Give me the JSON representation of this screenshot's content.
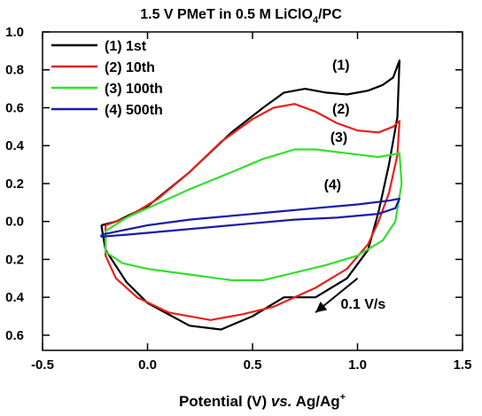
{
  "chart_data": {
    "type": "line",
    "title_main": "1.5 V PMeT in 0.5 M LiClO",
    "title_sub": "4",
    "title_tail": "/PC",
    "xlabel_main": "Potential (V) ",
    "xlabel_italic": "vs.",
    "xlabel_tail": " Ag/Ag",
    "xlabel_sup": "+",
    "ylabel": "",
    "xlim": [
      -0.5,
      1.5
    ],
    "ylim": [
      -0.68,
      1.0
    ],
    "x_ticks": [
      {
        "value": -0.5,
        "label": "-0.5"
      },
      {
        "value": 0.0,
        "label": "0.0"
      },
      {
        "value": 0.5,
        "label": "0.5"
      },
      {
        "value": 1.0,
        "label": "1.0"
      },
      {
        "value": 1.5,
        "label": "1.5"
      }
    ],
    "y_ticks": [
      {
        "value": 1.0,
        "label": "1.0"
      },
      {
        "value": 0.8,
        "label": "0.8"
      },
      {
        "value": 0.6,
        "label": "0.6"
      },
      {
        "value": 0.4,
        "label": "0.4"
      },
      {
        "value": 0.2,
        "label": "0.2"
      },
      {
        "value": 0.0,
        "label": "0.0"
      },
      {
        "value": -0.2,
        "label": "0.2"
      },
      {
        "value": -0.4,
        "label": "0.4"
      },
      {
        "value": -0.6,
        "label": "0.6"
      }
    ],
    "grid": false,
    "legend_position": "top-left",
    "series": [
      {
        "name": "(1) 1st",
        "color": "#000000",
        "annotation": "(1)",
        "points": [
          [
            -0.22,
            -0.02
          ],
          [
            -0.15,
            0.0
          ],
          [
            0.0,
            0.08
          ],
          [
            0.2,
            0.26
          ],
          [
            0.4,
            0.47
          ],
          [
            0.55,
            0.6
          ],
          [
            0.65,
            0.68
          ],
          [
            0.75,
            0.7
          ],
          [
            0.85,
            0.68
          ],
          [
            0.95,
            0.67
          ],
          [
            1.05,
            0.69
          ],
          [
            1.12,
            0.72
          ],
          [
            1.17,
            0.76
          ],
          [
            1.2,
            0.85
          ],
          [
            1.19,
            0.55
          ],
          [
            1.15,
            0.3
          ],
          [
            1.1,
            0.05
          ],
          [
            1.05,
            -0.15
          ],
          [
            0.95,
            -0.3
          ],
          [
            0.8,
            -0.4
          ],
          [
            0.65,
            -0.4
          ],
          [
            0.5,
            -0.5
          ],
          [
            0.35,
            -0.57
          ],
          [
            0.2,
            -0.55
          ],
          [
            0.0,
            -0.43
          ],
          [
            -0.1,
            -0.32
          ],
          [
            -0.2,
            -0.15
          ],
          [
            -0.22,
            -0.02
          ]
        ]
      },
      {
        "name": "(2) 10th",
        "color": "#e8201a",
        "annotation": "(2)",
        "points": [
          [
            -0.2,
            -0.02
          ],
          [
            -0.1,
            0.02
          ],
          [
            0.05,
            0.12
          ],
          [
            0.2,
            0.26
          ],
          [
            0.35,
            0.42
          ],
          [
            0.5,
            0.54
          ],
          [
            0.6,
            0.6
          ],
          [
            0.7,
            0.62
          ],
          [
            0.8,
            0.58
          ],
          [
            0.9,
            0.52
          ],
          [
            1.0,
            0.48
          ],
          [
            1.1,
            0.47
          ],
          [
            1.17,
            0.5
          ],
          [
            1.2,
            0.53
          ],
          [
            1.19,
            0.35
          ],
          [
            1.15,
            0.15
          ],
          [
            1.1,
            0.0
          ],
          [
            1.05,
            -0.12
          ],
          [
            0.95,
            -0.25
          ],
          [
            0.8,
            -0.35
          ],
          [
            0.6,
            -0.45
          ],
          [
            0.45,
            -0.49
          ],
          [
            0.3,
            -0.52
          ],
          [
            0.1,
            -0.48
          ],
          [
            -0.05,
            -0.4
          ],
          [
            -0.15,
            -0.3
          ],
          [
            -0.2,
            -0.18
          ],
          [
            -0.2,
            -0.02
          ]
        ]
      },
      {
        "name": "(3) 100th",
        "color": "#32e02e",
        "annotation": "(3)",
        "points": [
          [
            -0.2,
            -0.05
          ],
          [
            -0.1,
            0.02
          ],
          [
            0.0,
            0.07
          ],
          [
            0.2,
            0.17
          ],
          [
            0.4,
            0.26
          ],
          [
            0.55,
            0.33
          ],
          [
            0.7,
            0.38
          ],
          [
            0.8,
            0.38
          ],
          [
            0.95,
            0.36
          ],
          [
            1.1,
            0.34
          ],
          [
            1.2,
            0.36
          ],
          [
            1.21,
            0.2
          ],
          [
            1.18,
            0.0
          ],
          [
            1.12,
            -0.1
          ],
          [
            1.0,
            -0.18
          ],
          [
            0.85,
            -0.23
          ],
          [
            0.7,
            -0.27
          ],
          [
            0.55,
            -0.31
          ],
          [
            0.4,
            -0.31
          ],
          [
            0.2,
            -0.28
          ],
          [
            0.0,
            -0.25
          ],
          [
            -0.12,
            -0.22
          ],
          [
            -0.2,
            -0.16
          ],
          [
            -0.2,
            -0.05
          ]
        ]
      },
      {
        "name": "(4) 500th",
        "color": "#1a1aaa",
        "annotation": "(4)",
        "points": [
          [
            -0.22,
            -0.07
          ],
          [
            0.0,
            -0.02
          ],
          [
            0.2,
            0.01
          ],
          [
            0.4,
            0.03
          ],
          [
            0.6,
            0.05
          ],
          [
            0.8,
            0.07
          ],
          [
            1.0,
            0.09
          ],
          [
            1.15,
            0.11
          ],
          [
            1.2,
            0.12
          ],
          [
            1.18,
            0.07
          ],
          [
            1.1,
            0.04
          ],
          [
            0.9,
            0.02
          ],
          [
            0.7,
            0.01
          ],
          [
            0.5,
            -0.01
          ],
          [
            0.3,
            -0.03
          ],
          [
            0.1,
            -0.05
          ],
          [
            -0.1,
            -0.07
          ],
          [
            -0.22,
            -0.08
          ],
          [
            -0.22,
            -0.07
          ]
        ]
      }
    ],
    "annotations": [
      {
        "text": "(1)",
        "x": 0.88,
        "y": 0.8
      },
      {
        "text": "(2)",
        "x": 0.88,
        "y": 0.57
      },
      {
        "text": "(3)",
        "x": 0.87,
        "y": 0.42
      },
      {
        "text": "(4)",
        "x": 0.84,
        "y": 0.17
      },
      {
        "text": "0.1 V/s",
        "x": 0.92,
        "y": -0.46
      }
    ],
    "scan_arrow": {
      "from": [
        1.0,
        -0.3
      ],
      "to": [
        0.8,
        -0.48
      ]
    }
  }
}
